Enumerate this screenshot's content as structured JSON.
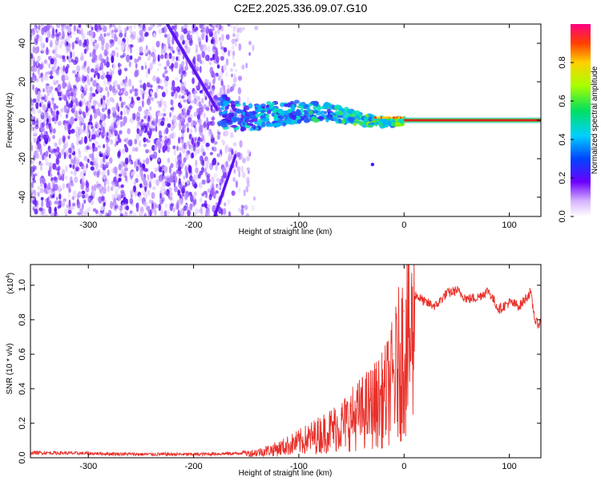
{
  "title": "C2E2.2025.336.09.07.G10",
  "chart_data": [
    {
      "type": "heatmap",
      "title": "C2E2.2025.336.09.07.G10",
      "xlabel": "Height of straight line (km)",
      "ylabel": "Frequency (Hz)",
      "xlim": [
        -355,
        130
      ],
      "ylim": [
        -50,
        50
      ],
      "xticks": [
        -300,
        -200,
        -100,
        0,
        100
      ],
      "xtick_labels": [
        "-300",
        "-200",
        "-100",
        "0",
        "100"
      ],
      "yticks": [
        -40,
        -20,
        0,
        20,
        40
      ],
      "ytick_labels": [
        "-40",
        "-20",
        "0",
        "20",
        "40"
      ],
      "colorbar": {
        "label": "Normalized spectral amplitude",
        "range": [
          0,
          1
        ],
        "ticks": [
          0.0,
          0.2,
          0.4,
          0.6,
          0.8
        ],
        "tick_labels": [
          "0.0",
          "0.2",
          "0.4",
          "0.6",
          "0.8"
        ]
      },
      "features": {
        "noise_region_x": [
          -355,
          -140
        ],
        "signal_line_frequency": 0,
        "signal_line_x": [
          0,
          130
        ],
        "transition_band_x": [
          -175,
          0
        ]
      }
    },
    {
      "type": "line",
      "xlabel": "Height of straight line (km)",
      "ylabel": "SNR (10 * v/v)",
      "y_multiplier_label": "(x10",
      "y_multiplier_exp": "4",
      "y_multiplier_close": ")",
      "xlim": [
        -355,
        130
      ],
      "ylim": [
        0,
        1.12
      ],
      "xticks": [
        -300,
        -200,
        -100,
        0,
        100
      ],
      "xtick_labels": [
        "-300",
        "-200",
        "-100",
        "0",
        "100"
      ],
      "yticks": [
        0.0,
        0.2,
        0.4,
        0.6,
        0.8,
        1.0
      ],
      "ytick_labels": [
        "0.0",
        "0.2",
        "0.4",
        "0.6",
        "0.8",
        "1.0"
      ],
      "series": [
        {
          "name": "SNR",
          "color": "#e8302a",
          "x": [
            -355,
            -300,
            -250,
            -200,
            -160,
            -140,
            -120,
            -100,
            -80,
            -60,
            -50,
            -40,
            -30,
            -20,
            -10,
            0,
            10,
            20,
            30,
            40,
            50,
            60,
            70,
            80,
            90,
            100,
            110,
            120,
            125,
            130
          ],
          "y": [
            0.03,
            0.025,
            0.02,
            0.02,
            0.025,
            0.04,
            0.07,
            0.12,
            0.18,
            0.25,
            0.3,
            0.35,
            0.4,
            0.45,
            0.6,
            0.85,
            0.95,
            0.9,
            0.88,
            0.95,
            0.97,
            0.92,
            0.93,
            0.97,
            0.86,
            0.9,
            0.88,
            0.96,
            0.78,
            0.78
          ]
        }
      ]
    }
  ]
}
